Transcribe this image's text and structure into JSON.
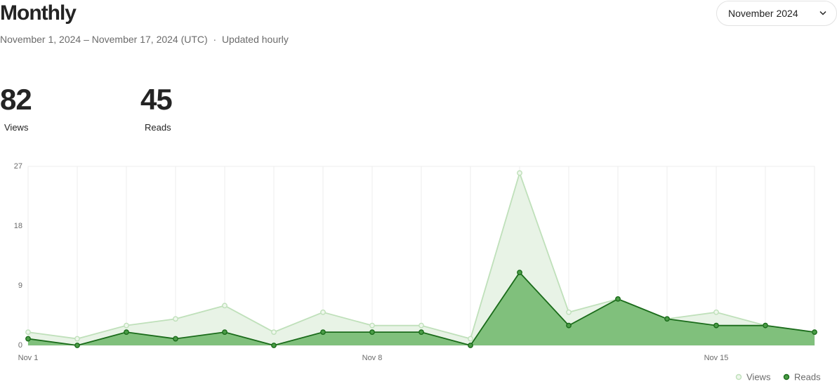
{
  "header": {
    "title": "Monthly",
    "date_range": "November 1, 2024 – November 17, 2024 (UTC)",
    "separator": "·",
    "update_note": "Updated hourly",
    "month_select": "November 2024"
  },
  "stats": [
    {
      "value": 82,
      "label": "Views"
    },
    {
      "value": 45,
      "label": "Reads"
    }
  ],
  "chart_data": {
    "type": "area",
    "categories": [
      "Nov 1",
      null,
      null,
      null,
      null,
      null,
      null,
      "Nov 8",
      null,
      null,
      null,
      null,
      null,
      null,
      "Nov 15",
      null,
      null
    ],
    "series": [
      {
        "name": "Views",
        "color": "#bfe0ba",
        "fill": "#e8f3e6",
        "values": [
          2,
          1,
          3,
          4,
          6,
          2,
          5,
          3,
          3,
          1,
          26,
          5,
          7,
          4,
          5,
          3,
          2
        ]
      },
      {
        "name": "Reads",
        "color": "#1a6b1a",
        "fill": "#80c07c",
        "values": [
          1,
          0,
          2,
          1,
          2,
          0,
          2,
          2,
          2,
          0,
          11,
          3,
          7,
          4,
          3,
          3,
          2
        ]
      }
    ],
    "ylim": [
      0,
      27
    ],
    "yticks": [
      0,
      9,
      18,
      27
    ],
    "grid": true,
    "legend": "bottom-right"
  }
}
